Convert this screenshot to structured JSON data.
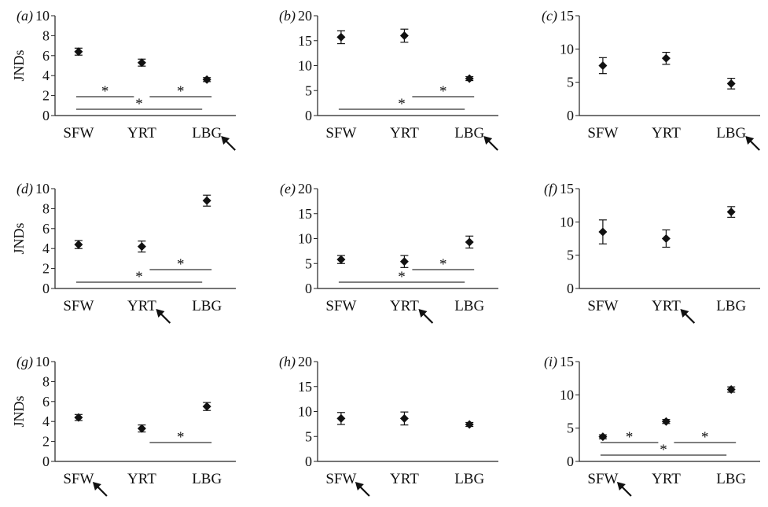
{
  "figure": {
    "ylabel_text": "JNDs",
    "categories": [
      "SFW",
      "YRT",
      "LBG"
    ]
  },
  "chart_data": [
    {
      "type": "scatter",
      "panel": "(a)",
      "ylabel": "JNDs",
      "ylim": [
        0,
        10
      ],
      "yticks": [
        0,
        2,
        4,
        6,
        8,
        10
      ],
      "categories": [
        "SFW",
        "YRT",
        "LBG"
      ],
      "values": [
        6.4,
        5.3,
        3.6
      ],
      "errors": [
        0.35,
        0.35,
        0.2
      ],
      "significance": [
        {
          "from": 0,
          "to": 1,
          "label": "*"
        },
        {
          "from": 1,
          "to": 2,
          "label": "*"
        },
        {
          "from": 0,
          "to": 2,
          "label": "*"
        }
      ],
      "arrow_category": "LBG"
    },
    {
      "type": "scatter",
      "panel": "(b)",
      "ylabel": "",
      "ylim": [
        0,
        20
      ],
      "yticks": [
        0,
        5,
        10,
        15,
        20
      ],
      "categories": [
        "SFW",
        "YRT",
        "LBG"
      ],
      "values": [
        15.7,
        16.0,
        7.4
      ],
      "errors": [
        1.3,
        1.3,
        0.4
      ],
      "significance": [
        {
          "from": 1,
          "to": 2,
          "label": "*"
        },
        {
          "from": 0,
          "to": 2,
          "label": "*"
        }
      ],
      "arrow_category": "LBG"
    },
    {
      "type": "scatter",
      "panel": "(c)",
      "ylabel": "",
      "ylim": [
        0,
        15
      ],
      "yticks": [
        0,
        5,
        10,
        15
      ],
      "categories": [
        "SFW",
        "YRT",
        "LBG"
      ],
      "values": [
        7.5,
        8.6,
        4.8
      ],
      "errors": [
        1.2,
        0.9,
        0.8
      ],
      "significance": [],
      "arrow_category": "LBG"
    },
    {
      "type": "scatter",
      "panel": "(d)",
      "ylabel": "JNDs",
      "ylim": [
        0,
        10
      ],
      "yticks": [
        0,
        2,
        4,
        6,
        8,
        10
      ],
      "categories": [
        "SFW",
        "YRT",
        "LBG"
      ],
      "values": [
        4.4,
        4.2,
        8.8
      ],
      "errors": [
        0.4,
        0.55,
        0.55
      ],
      "significance": [
        {
          "from": 1,
          "to": 2,
          "label": "*"
        },
        {
          "from": 0,
          "to": 2,
          "label": "*"
        }
      ],
      "arrow_category": "YRT"
    },
    {
      "type": "scatter",
      "panel": "(e)",
      "ylabel": "",
      "ylim": [
        0,
        20
      ],
      "yticks": [
        0,
        5,
        10,
        15,
        20
      ],
      "categories": [
        "SFW",
        "YRT",
        "LBG"
      ],
      "values": [
        5.8,
        5.4,
        9.3
      ],
      "errors": [
        0.8,
        1.2,
        1.2
      ],
      "significance": [
        {
          "from": 1,
          "to": 2,
          "label": "*"
        },
        {
          "from": 0,
          "to": 2,
          "label": "*"
        }
      ],
      "arrow_category": "YRT"
    },
    {
      "type": "scatter",
      "panel": "(f)",
      "ylabel": "",
      "ylim": [
        0,
        15
      ],
      "yticks": [
        0,
        5,
        10,
        15
      ],
      "categories": [
        "SFW",
        "YRT",
        "LBG"
      ],
      "values": [
        8.5,
        7.5,
        11.5
      ],
      "errors": [
        1.8,
        1.3,
        0.8
      ],
      "significance": [],
      "arrow_category": "YRT"
    },
    {
      "type": "scatter",
      "panel": "(g)",
      "ylabel": "JNDs",
      "ylim": [
        0,
        10
      ],
      "yticks": [
        0,
        2,
        4,
        6,
        8,
        10
      ],
      "categories": [
        "SFW",
        "YRT",
        "LBG"
      ],
      "values": [
        4.4,
        3.3,
        5.5
      ],
      "errors": [
        0.3,
        0.35,
        0.4
      ],
      "significance": [
        {
          "from": 1,
          "to": 2,
          "label": "*"
        }
      ],
      "arrow_category": "SFW"
    },
    {
      "type": "scatter",
      "panel": "(h)",
      "ylabel": "",
      "ylim": [
        0,
        20
      ],
      "yticks": [
        0,
        5,
        10,
        15,
        20
      ],
      "categories": [
        "SFW",
        "YRT",
        "LBG"
      ],
      "values": [
        8.6,
        8.6,
        7.4
      ],
      "errors": [
        1.2,
        1.3,
        0.4
      ],
      "significance": [],
      "arrow_category": "SFW"
    },
    {
      "type": "scatter",
      "panel": "(i)",
      "ylabel": "",
      "ylim": [
        0,
        15
      ],
      "yticks": [
        0,
        5,
        10,
        15
      ],
      "categories": [
        "SFW",
        "YRT",
        "LBG"
      ],
      "values": [
        3.7,
        6.0,
        10.8
      ],
      "errors": [
        0.3,
        0.3,
        0.4
      ],
      "significance": [
        {
          "from": 0,
          "to": 1,
          "label": "*"
        },
        {
          "from": 1,
          "to": 2,
          "label": "*"
        },
        {
          "from": 0,
          "to": 2,
          "label": "*"
        }
      ],
      "arrow_category": "SFW"
    }
  ]
}
